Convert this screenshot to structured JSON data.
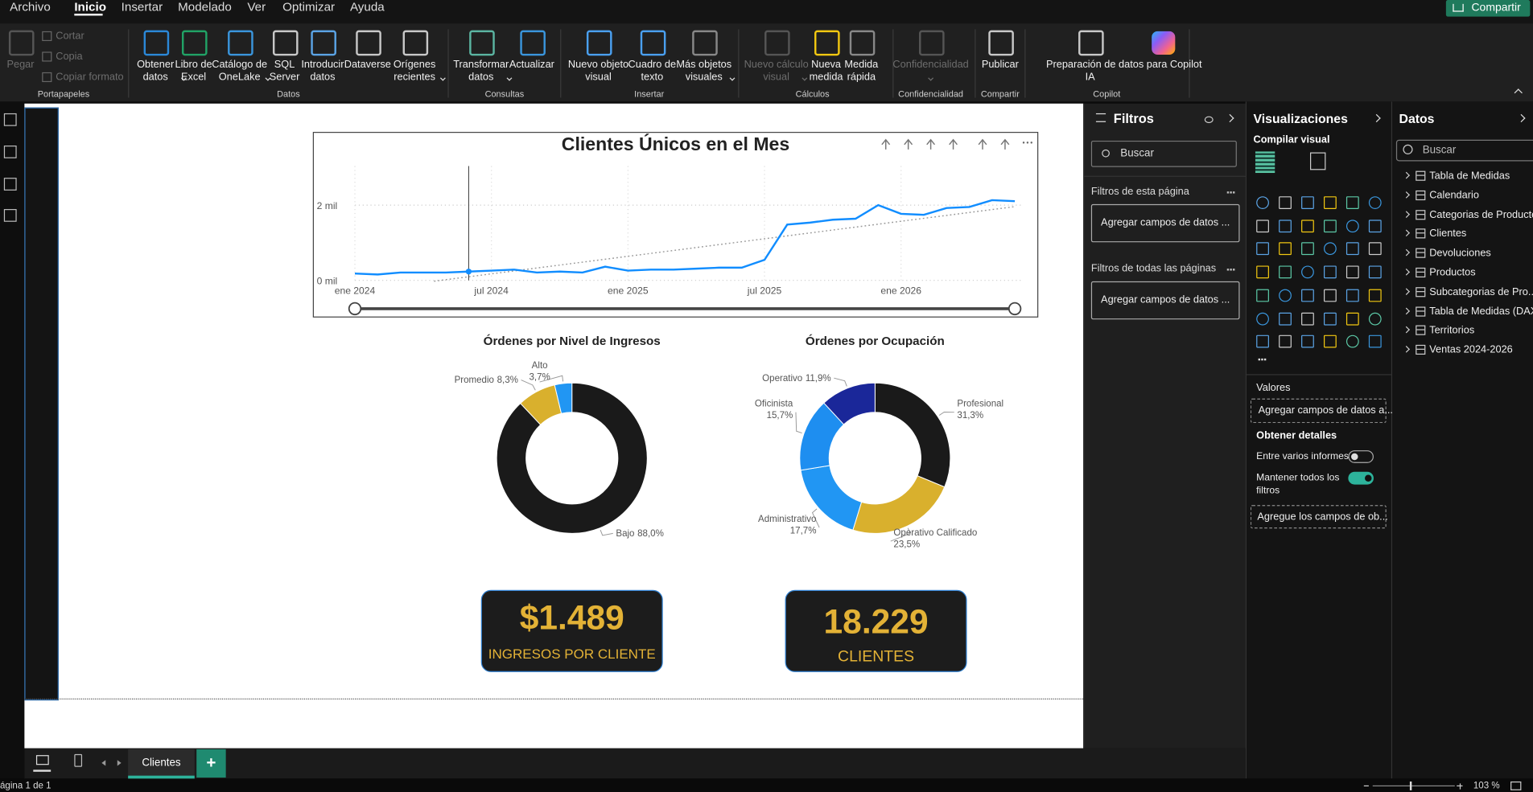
{
  "menu": {
    "items": [
      "Archivo",
      "Inicio",
      "Insertar",
      "Modelado",
      "Ver",
      "Optimizar",
      "Ayuda"
    ],
    "active": "Inicio",
    "share": "Compartir"
  },
  "ribbon": {
    "groups": [
      {
        "name": "Portapapeles",
        "buttons": [
          {
            "label": "Pegar",
            "disabled": true
          }
        ],
        "small": [
          "Cortar",
          "Copia",
          "Copiar formato"
        ]
      },
      {
        "name": "Datos",
        "buttons": [
          {
            "label": "Obtener\ndatos",
            "dropdown": true
          },
          {
            "label": "Libro de\nExcel"
          },
          {
            "label": "Catálogo de\nOneLake",
            "dropdown": true
          },
          {
            "label": "SQL\nServer"
          },
          {
            "label": "Introducir\ndatos"
          },
          {
            "label": "Dataverse"
          },
          {
            "label": "Orígenes\nrecientes",
            "dropdown": true
          }
        ]
      },
      {
        "name": "Consultas",
        "buttons": [
          {
            "label": "Transformar\ndatos",
            "dropdown": true
          },
          {
            "label": "Actualizar"
          }
        ]
      },
      {
        "name": "Insertar",
        "buttons": [
          {
            "label": "Nuevo objeto\nvisual"
          },
          {
            "label": "Cuadro de\ntexto"
          },
          {
            "label": "Más objetos\nvisuales",
            "dropdown": true
          }
        ]
      },
      {
        "name": "Cálculos",
        "buttons": [
          {
            "label": "Nuevo cálculo\nvisual",
            "disabled": true,
            "dropdown": true
          },
          {
            "label": "Nueva\nmedida"
          },
          {
            "label": "Medida\nrápida"
          }
        ]
      },
      {
        "name": "Confidencialidad",
        "buttons": [
          {
            "label": "Confidencialidad",
            "disabled": true,
            "dropdown": true
          }
        ]
      },
      {
        "name": "Compartir",
        "buttons": [
          {
            "label": "Publicar"
          }
        ]
      },
      {
        "name": "Copilot",
        "buttons": [
          {
            "label": "Preparación de datos para Copilot\nIA"
          }
        ]
      }
    ]
  },
  "line_chart": {
    "type": "line",
    "title": "Clientes Únicos en el Mes",
    "x": [
      "2024-01",
      "2024-02",
      "2024-03",
      "2024-04",
      "2024-05",
      "2024-06",
      "2024-07",
      "2024-08",
      "2024-09",
      "2024-10",
      "2024-11",
      "2024-12",
      "2025-01",
      "2025-02",
      "2025-03",
      "2025-04",
      "2025-05",
      "2025-06",
      "2025-07",
      "2025-08",
      "2025-09",
      "2025-10",
      "2025-11",
      "2025-12",
      "2026-01",
      "2026-02",
      "2026-03",
      "2026-04",
      "2026-05",
      "2026-06"
    ],
    "series": [
      {
        "color": "#118dff",
        "values": [
          182,
          156,
          208,
          208,
          208,
          234,
          260,
          286,
          208,
          234,
          208,
          364,
          260,
          286,
          286,
          312,
          338,
          338,
          546,
          1482,
          1534,
          1612,
          1638,
          2000,
          1768,
          1742,
          1924,
          1950,
          2132,
          2106
        ]
      }
    ],
    "xlim": [
      "2024-01",
      "2026-06"
    ],
    "xticks": [
      {
        "value": "2024-01",
        "label": "ene 2024"
      },
      {
        "value": "2024-07",
        "label": "jul 2024"
      },
      {
        "value": "2025-01",
        "label": "ene 2025"
      },
      {
        "value": "2025-07",
        "label": "jul 2025"
      },
      {
        "value": "2026-01",
        "label": "ene 2026"
      }
    ],
    "ylim": [
      0,
      3000
    ],
    "yticks": [
      {
        "value": 0,
        "label": "0 mil"
      },
      {
        "value": 2000,
        "label": "2 mil"
      }
    ],
    "grid": true,
    "trendline": true
  },
  "donuts": [
    {
      "type": "pie",
      "title": "Órdenes por Nivel de Ingresos",
      "categories": [
        "Bajo",
        "Promedio",
        "Alto"
      ],
      "values": [
        88.0,
        8.3,
        3.7
      ],
      "value_labels": [
        "88,0%",
        "8,3%",
        "3,7%"
      ],
      "colors": [
        "#1a1a1a",
        "#d9b02d",
        "#2196f3"
      ]
    },
    {
      "type": "pie",
      "title": "Órdenes por Ocupación",
      "categories": [
        "Profesional",
        "Operativo Calificado",
        "Administrativo",
        "Oficinista",
        "Operativo"
      ],
      "values": [
        31.3,
        23.5,
        17.7,
        15.7,
        11.9
      ],
      "value_labels": [
        "31,3%",
        "23,5%",
        "17,7%",
        "15,7%",
        "11,9%"
      ],
      "colors": [
        "#1a1a1a",
        "#d9b02d",
        "#2196f3",
        "#1e8ef0",
        "#1a2799"
      ]
    }
  ],
  "cards": [
    {
      "value": "$1.489",
      "label": "INGRESOS POR CLIENTE"
    },
    {
      "value": "18.229",
      "label": "CLIENTES"
    }
  ],
  "filters": {
    "title": "Filtros",
    "search": "Buscar",
    "sections": [
      {
        "title": "Filtros de esta página",
        "drop": "Agregar campos de datos ..."
      },
      {
        "title": "Filtros de todas las páginas",
        "drop": "Agregar campos de datos ..."
      }
    ]
  },
  "visualizations": {
    "title": "Visualizaciones",
    "subtitle": "Compilar visual",
    "values": "Valores",
    "values_drop": "Agregar campos de datos a...",
    "drill": "Obtener detalles",
    "cross_report": "Entre varios informes",
    "keep_filters": "Mantener todos los\nfiltros",
    "drill_drop": "Agregue los campos de ob..."
  },
  "data_pane": {
    "title": "Datos",
    "search": "Buscar",
    "tables": [
      "Tabla de Medidas",
      "Calendario",
      "Categorias de Producto",
      "Clientes",
      "Devoluciones",
      "Productos",
      "Subcategorias de Pro...",
      "Tabla de Medidas (DAX)",
      "Territorios",
      "Ventas 2024-2026"
    ]
  },
  "tabs": {
    "pages": [
      "Clientes"
    ],
    "add": "+"
  },
  "status": {
    "page": "ágina 1 de 1",
    "zoom": "103 %"
  }
}
